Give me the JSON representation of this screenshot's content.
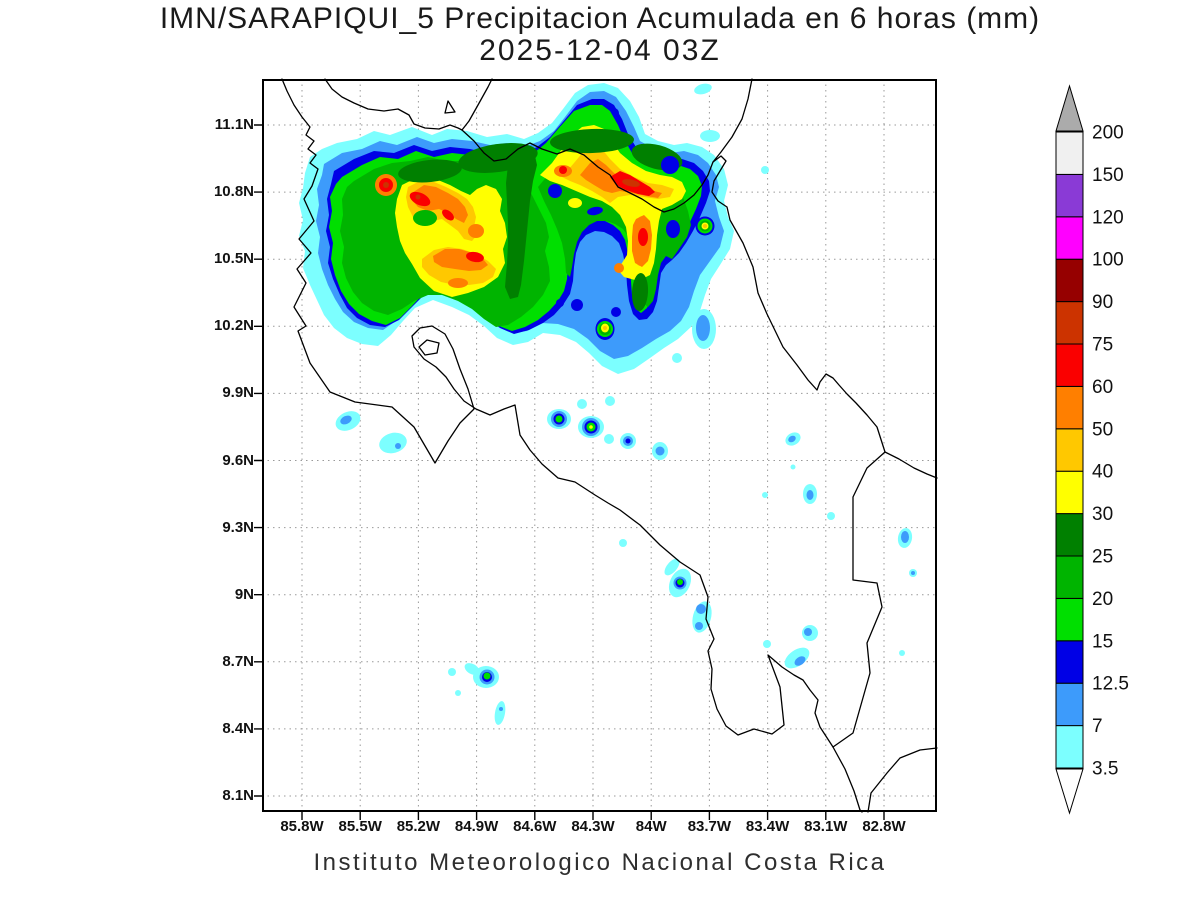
{
  "header": {
    "title": "IMN/SARAPIQUI_5 Precipitacion Acumulada en 6 horas (mm)",
    "datetime": "2025-12-04 03Z"
  },
  "footer": {
    "credit": "Instituto Meteorologico Nacional Costa Rica"
  },
  "map": {
    "lat_tick_labels": [
      "11.1N",
      "10.8N",
      "10.5N",
      "10.2N",
      "9.9N",
      "9.6N",
      "9.3N",
      "9N",
      "8.7N",
      "8.4N",
      "8.1N"
    ],
    "lon_tick_labels": [
      "85.8W",
      "85.5W",
      "85.2W",
      "84.9W",
      "84.6W",
      "84.3W",
      "84W",
      "83.7W",
      "83.4W",
      "83.1W",
      "82.8W"
    ]
  },
  "colorbar": {
    "unit": "mm",
    "boundaries": [
      "3.5",
      "7",
      "12.5",
      "15",
      "20",
      "25",
      "30",
      "40",
      "50",
      "60",
      "75",
      "90",
      "100",
      "120",
      "150",
      "200"
    ],
    "level_colors": {
      "3.5": "#7CFFFF",
      "7": "#3D9BFB",
      "12.5": "#0000E6",
      "15": "#00DF00",
      "20": "#00B400",
      "25": "#008000",
      "30": "#FFFF00",
      "40": "#FFC800",
      "50": "#FF7F00",
      "60": "#FA0000",
      "75": "#CC3300",
      "90": "#960000",
      "100": "#FF00FF",
      "120": "#8A3AD6",
      "150": "#F0F0F0"
    },
    "above_color": "#ABABAB",
    "below_color": "#FFFFFF",
    "outline_color": "#000000"
  }
}
